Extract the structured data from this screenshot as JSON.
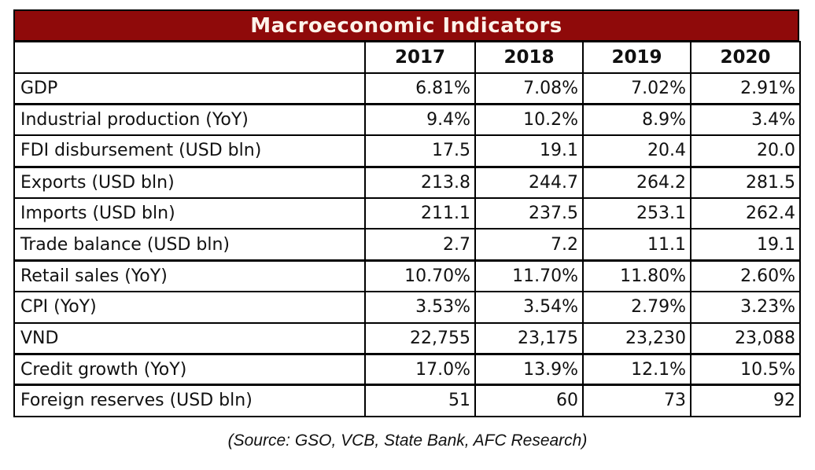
{
  "title": "Macroeconomic Indicators",
  "source_note": "(Source: GSO, VCB, State Bank, AFC Research)",
  "colors": {
    "title_bg": "#8F0A0A",
    "title_text": "#FDF3EA",
    "table_border": "#000000",
    "cell_text": "#111111",
    "background": "#FFFFFF"
  },
  "chart_data": {
    "type": "table",
    "title": "Macroeconomic Indicators",
    "columns": [
      "",
      "2017",
      "2018",
      "2019",
      "2020"
    ],
    "rows": [
      {
        "label": "GDP",
        "values": [
          "6.81%",
          "7.08%",
          "7.02%",
          "2.91%"
        ]
      },
      {
        "label": "Industrial production (YoY)",
        "values": [
          "9.4%",
          "10.2%",
          "8.9%",
          "3.4%"
        ]
      },
      {
        "label": "FDI disbursement (USD bln)",
        "values": [
          "17.5",
          "19.1",
          "20.4",
          "20.0"
        ]
      },
      {
        "label": "Exports (USD bln)",
        "values": [
          "213.8",
          "244.7",
          "264.2",
          "281.5"
        ]
      },
      {
        "label": "Imports (USD bln)",
        "values": [
          "211.1",
          "237.5",
          "253.1",
          "262.4"
        ]
      },
      {
        "label": "Trade balance (USD bln)",
        "values": [
          "2.7",
          "7.2",
          "11.1",
          "19.1"
        ]
      },
      {
        "label": "Retail sales  (YoY)",
        "values": [
          "10.70%",
          "11.70%",
          "11.80%",
          "2.60%"
        ]
      },
      {
        "label": "CPI (YoY)",
        "values": [
          "3.53%",
          "3.54%",
          "2.79%",
          "3.23%"
        ]
      },
      {
        "label": "VND",
        "values": [
          "22,755",
          "23,175",
          "23,230",
          "23,088"
        ]
      },
      {
        "label": "Credit growth  (YoY)",
        "values": [
          "17.0%",
          "13.9%",
          "12.1%",
          "10.5%"
        ]
      },
      {
        "label": "Foreign reserves (USD bln)",
        "values": [
          "51",
          "60",
          "73",
          "92"
        ]
      }
    ],
    "grouped_border_after_rows": [
      0,
      2,
      5,
      8,
      9
    ],
    "legend_position": "none",
    "grid": true
  }
}
